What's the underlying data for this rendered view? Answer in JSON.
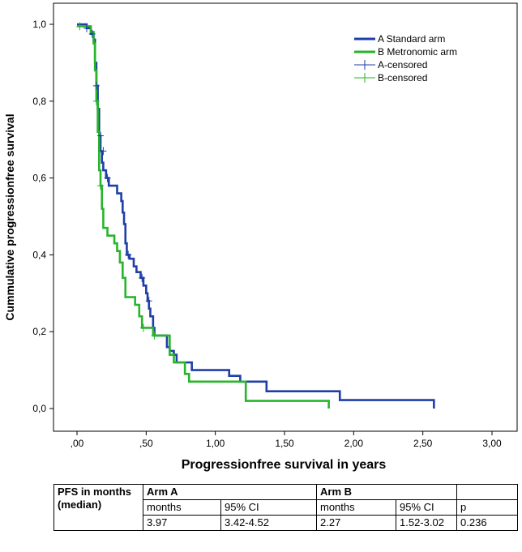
{
  "chart_data": {
    "type": "line",
    "subtype": "kaplan-meier step",
    "title": "",
    "xlabel": "Progressionfree survival in years",
    "ylabel": "Cummulative progressionfree survival",
    "xlim": [
      0,
      3
    ],
    "ylim": [
      0,
      1
    ],
    "x_ticks": [
      {
        "value": 0.0,
        "label": ",00"
      },
      {
        "value": 0.5,
        "label": ",50"
      },
      {
        "value": 1.0,
        "label": "1,00"
      },
      {
        "value": 1.5,
        "label": "1,50"
      },
      {
        "value": 2.0,
        "label": "2,00"
      },
      {
        "value": 2.5,
        "label": "2,50"
      },
      {
        "value": 3.0,
        "label": "3,00"
      }
    ],
    "y_ticks": [
      {
        "value": 0.0,
        "label": "0,0"
      },
      {
        "value": 0.2,
        "label": "0,2"
      },
      {
        "value": 0.4,
        "label": "0,4"
      },
      {
        "value": 0.6,
        "label": "0,6"
      },
      {
        "value": 0.8,
        "label": "0,8"
      },
      {
        "value": 1.0,
        "label": "1,0"
      }
    ],
    "legend_position": "top-right",
    "legend": [
      {
        "label": "A Standard arm",
        "kind": "line",
        "color": "#1f3fa8"
      },
      {
        "label": "B Metronomic arm",
        "kind": "line",
        "color": "#27b52b"
      },
      {
        "label": "A-censored",
        "kind": "marker",
        "color": "#1f3fa8"
      },
      {
        "label": "B-censored",
        "kind": "marker",
        "color": "#27b52b"
      }
    ],
    "series": [
      {
        "name": "A Standard arm",
        "color": "#1f3fa8",
        "steps": [
          [
            0.0,
            1.0
          ],
          [
            0.07,
            0.99
          ],
          [
            0.1,
            0.975
          ],
          [
            0.12,
            0.96
          ],
          [
            0.13,
            0.9
          ],
          [
            0.14,
            0.84
          ],
          [
            0.15,
            0.78
          ],
          [
            0.16,
            0.71
          ],
          [
            0.17,
            0.67
          ],
          [
            0.18,
            0.64
          ],
          [
            0.19,
            0.62
          ],
          [
            0.21,
            0.6
          ],
          [
            0.23,
            0.58
          ],
          [
            0.29,
            0.56
          ],
          [
            0.32,
            0.54
          ],
          [
            0.33,
            0.51
          ],
          [
            0.34,
            0.48
          ],
          [
            0.35,
            0.43
          ],
          [
            0.36,
            0.4
          ],
          [
            0.38,
            0.39
          ],
          [
            0.41,
            0.37
          ],
          [
            0.43,
            0.355
          ],
          [
            0.46,
            0.34
          ],
          [
            0.48,
            0.32
          ],
          [
            0.5,
            0.3
          ],
          [
            0.51,
            0.28
          ],
          [
            0.52,
            0.26
          ],
          [
            0.53,
            0.24
          ],
          [
            0.55,
            0.21
          ],
          [
            0.56,
            0.19
          ],
          [
            0.65,
            0.16
          ],
          [
            0.67,
            0.15
          ],
          [
            0.7,
            0.14
          ],
          [
            0.72,
            0.12
          ],
          [
            0.83,
            0.1
          ],
          [
            1.1,
            0.085
          ],
          [
            1.18,
            0.07
          ],
          [
            1.37,
            0.045
          ],
          [
            1.9,
            0.022
          ],
          [
            2.58,
            0.0
          ]
        ],
        "end_x": 2.58,
        "censored": [
          [
            0.07,
            0.99
          ],
          [
            0.11,
            0.975
          ],
          [
            0.14,
            0.84
          ],
          [
            0.17,
            0.71
          ],
          [
            0.19,
            0.67
          ],
          [
            0.22,
            0.6
          ],
          [
            0.37,
            0.4
          ],
          [
            0.47,
            0.34
          ],
          [
            0.52,
            0.28
          ]
        ]
      },
      {
        "name": "B Metronomic arm",
        "color": "#27b52b",
        "steps": [
          [
            0.0,
            0.995
          ],
          [
            0.1,
            0.98
          ],
          [
            0.12,
            0.95
          ],
          [
            0.13,
            0.88
          ],
          [
            0.14,
            0.8
          ],
          [
            0.15,
            0.72
          ],
          [
            0.16,
            0.62
          ],
          [
            0.17,
            0.58
          ],
          [
            0.18,
            0.52
          ],
          [
            0.19,
            0.47
          ],
          [
            0.22,
            0.45
          ],
          [
            0.27,
            0.43
          ],
          [
            0.29,
            0.41
          ],
          [
            0.31,
            0.38
          ],
          [
            0.33,
            0.34
          ],
          [
            0.35,
            0.29
          ],
          [
            0.42,
            0.27
          ],
          [
            0.45,
            0.24
          ],
          [
            0.47,
            0.21
          ],
          [
            0.55,
            0.19
          ],
          [
            0.67,
            0.14
          ],
          [
            0.7,
            0.12
          ],
          [
            0.78,
            0.09
          ],
          [
            0.81,
            0.07
          ],
          [
            1.02,
            0.07
          ],
          [
            1.22,
            0.02
          ],
          [
            1.82,
            0.0
          ]
        ],
        "end_x": 1.82,
        "censored": [
          [
            0.02,
            0.995
          ],
          [
            0.14,
            0.8
          ],
          [
            0.17,
            0.58
          ],
          [
            0.48,
            0.21
          ],
          [
            0.56,
            0.19
          ]
        ]
      }
    ]
  },
  "table": {
    "header_left": [
      "PFS in months",
      "(median)"
    ],
    "arm_a": "Arm A",
    "arm_b": "Arm B",
    "sub": {
      "months_a": "months",
      "ci_a": "95% CI",
      "months_b": "months",
      "ci_b": "95% CI",
      "p": "p"
    },
    "values": {
      "months_a": "3.97",
      "ci_a": "3.42-4.52",
      "months_b": "2.27",
      "ci_b": "1.52-3.02",
      "p": "0.236"
    }
  }
}
